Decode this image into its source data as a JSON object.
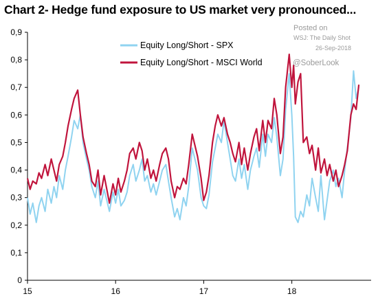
{
  "chart_data": {
    "type": "line",
    "title": "Chart 2- Hedge fund exposure to US market very pronounced...",
    "xlabel": "",
    "ylabel": "",
    "ylim": [
      0,
      0.9
    ],
    "yticks": [
      "0",
      "0,1",
      "0,2",
      "0,3",
      "0,4",
      "0,5",
      "0,6",
      "0,7",
      "0,8",
      "0,9"
    ],
    "xlim": [
      2015,
      2018.9
    ],
    "xticks": [
      {
        "value": 2015,
        "label": "15"
      },
      {
        "value": 2016,
        "label": "16"
      },
      {
        "value": 2017,
        "label": "17"
      },
      {
        "value": 2018,
        "label": "18"
      }
    ],
    "grid": false,
    "legend": "top-center",
    "series": [
      {
        "name": "Equity Long/Short - SPX",
        "color": "#8fd3f0",
        "points": [
          [
            2015.0,
            0.3
          ],
          [
            2015.03,
            0.24
          ],
          [
            2015.06,
            0.28
          ],
          [
            2015.1,
            0.21
          ],
          [
            2015.13,
            0.27
          ],
          [
            2015.16,
            0.3
          ],
          [
            2015.2,
            0.25
          ],
          [
            2015.23,
            0.33
          ],
          [
            2015.27,
            0.28
          ],
          [
            2015.3,
            0.34
          ],
          [
            2015.33,
            0.3
          ],
          [
            2015.36,
            0.38
          ],
          [
            2015.4,
            0.33
          ],
          [
            2015.43,
            0.4
          ],
          [
            2015.46,
            0.45
          ],
          [
            2015.5,
            0.52
          ],
          [
            2015.53,
            0.58
          ],
          [
            2015.57,
            0.55
          ],
          [
            2015.6,
            0.6
          ],
          [
            2015.63,
            0.5
          ],
          [
            2015.67,
            0.44
          ],
          [
            2015.7,
            0.4
          ],
          [
            2015.73,
            0.34
          ],
          [
            2015.77,
            0.3
          ],
          [
            2015.8,
            0.36
          ],
          [
            2015.83,
            0.27
          ],
          [
            2015.87,
            0.33
          ],
          [
            2015.9,
            0.29
          ],
          [
            2015.93,
            0.25
          ],
          [
            2015.97,
            0.32
          ],
          [
            2016.0,
            0.28
          ],
          [
            2016.03,
            0.33
          ],
          [
            2016.06,
            0.27
          ],
          [
            2016.1,
            0.29
          ],
          [
            2016.13,
            0.32
          ],
          [
            2016.16,
            0.38
          ],
          [
            2016.2,
            0.42
          ],
          [
            2016.23,
            0.36
          ],
          [
            2016.27,
            0.4
          ],
          [
            2016.3,
            0.44
          ],
          [
            2016.33,
            0.36
          ],
          [
            2016.36,
            0.38
          ],
          [
            2016.4,
            0.32
          ],
          [
            2016.43,
            0.35
          ],
          [
            2016.46,
            0.31
          ],
          [
            2016.5,
            0.36
          ],
          [
            2016.53,
            0.4
          ],
          [
            2016.57,
            0.42
          ],
          [
            2016.6,
            0.36
          ],
          [
            2016.63,
            0.3
          ],
          [
            2016.67,
            0.23
          ],
          [
            2016.7,
            0.26
          ],
          [
            2016.73,
            0.22
          ],
          [
            2016.77,
            0.3
          ],
          [
            2016.8,
            0.27
          ],
          [
            2016.83,
            0.34
          ],
          [
            2016.87,
            0.48
          ],
          [
            2016.9,
            0.44
          ],
          [
            2016.93,
            0.4
          ],
          [
            2016.97,
            0.3
          ],
          [
            2017.0,
            0.27
          ],
          [
            2017.03,
            0.26
          ],
          [
            2017.06,
            0.31
          ],
          [
            2017.1,
            0.43
          ],
          [
            2017.13,
            0.48
          ],
          [
            2017.16,
            0.53
          ],
          [
            2017.2,
            0.5
          ],
          [
            2017.23,
            0.58
          ],
          [
            2017.27,
            0.5
          ],
          [
            2017.3,
            0.44
          ],
          [
            2017.33,
            0.38
          ],
          [
            2017.36,
            0.36
          ],
          [
            2017.4,
            0.44
          ],
          [
            2017.43,
            0.37
          ],
          [
            2017.46,
            0.42
          ],
          [
            2017.5,
            0.33
          ],
          [
            2017.53,
            0.4
          ],
          [
            2017.57,
            0.45
          ],
          [
            2017.6,
            0.48
          ],
          [
            2017.63,
            0.41
          ],
          [
            2017.67,
            0.53
          ],
          [
            2017.7,
            0.45
          ],
          [
            2017.73,
            0.53
          ],
          [
            2017.77,
            0.5
          ],
          [
            2017.8,
            0.59
          ],
          [
            2017.83,
            0.52
          ],
          [
            2017.87,
            0.38
          ],
          [
            2017.9,
            0.44
          ],
          [
            2017.93,
            0.62
          ],
          [
            2017.97,
            0.75
          ],
          [
            2018.0,
            0.6
          ],
          [
            2018.02,
            0.45
          ],
          [
            2018.04,
            0.23
          ],
          [
            2018.07,
            0.21
          ],
          [
            2018.1,
            0.25
          ],
          [
            2018.13,
            0.23
          ],
          [
            2018.17,
            0.31
          ],
          [
            2018.2,
            0.27
          ],
          [
            2018.23,
            0.37
          ],
          [
            2018.27,
            0.3
          ],
          [
            2018.3,
            0.25
          ],
          [
            2018.33,
            0.38
          ],
          [
            2018.37,
            0.22
          ],
          [
            2018.4,
            0.29
          ],
          [
            2018.43,
            0.36
          ],
          [
            2018.47,
            0.4
          ],
          [
            2018.5,
            0.34
          ],
          [
            2018.53,
            0.37
          ],
          [
            2018.57,
            0.3
          ],
          [
            2018.6,
            0.4
          ],
          [
            2018.63,
            0.48
          ],
          [
            2018.67,
            0.59
          ],
          [
            2018.7,
            0.76
          ],
          [
            2018.73,
            0.66
          ],
          [
            2018.76,
            0.7
          ]
        ]
      },
      {
        "name": "Equity Long/Short - MSCI World",
        "color": "#c0143c",
        "points": [
          [
            2015.0,
            0.37
          ],
          [
            2015.03,
            0.33
          ],
          [
            2015.06,
            0.36
          ],
          [
            2015.1,
            0.35
          ],
          [
            2015.13,
            0.39
          ],
          [
            2015.16,
            0.37
          ],
          [
            2015.2,
            0.42
          ],
          [
            2015.23,
            0.38
          ],
          [
            2015.27,
            0.44
          ],
          [
            2015.3,
            0.4
          ],
          [
            2015.33,
            0.36
          ],
          [
            2015.36,
            0.42
          ],
          [
            2015.4,
            0.45
          ],
          [
            2015.43,
            0.5
          ],
          [
            2015.46,
            0.56
          ],
          [
            2015.5,
            0.62
          ],
          [
            2015.53,
            0.66
          ],
          [
            2015.57,
            0.69
          ],
          [
            2015.6,
            0.6
          ],
          [
            2015.63,
            0.52
          ],
          [
            2015.67,
            0.46
          ],
          [
            2015.7,
            0.42
          ],
          [
            2015.73,
            0.36
          ],
          [
            2015.77,
            0.34
          ],
          [
            2015.8,
            0.4
          ],
          [
            2015.83,
            0.31
          ],
          [
            2015.87,
            0.38
          ],
          [
            2015.9,
            0.33
          ],
          [
            2015.93,
            0.28
          ],
          [
            2015.97,
            0.35
          ],
          [
            2016.0,
            0.31
          ],
          [
            2016.03,
            0.37
          ],
          [
            2016.06,
            0.32
          ],
          [
            2016.1,
            0.36
          ],
          [
            2016.13,
            0.4
          ],
          [
            2016.16,
            0.46
          ],
          [
            2016.2,
            0.48
          ],
          [
            2016.23,
            0.44
          ],
          [
            2016.27,
            0.5
          ],
          [
            2016.3,
            0.47
          ],
          [
            2016.33,
            0.4
          ],
          [
            2016.36,
            0.44
          ],
          [
            2016.4,
            0.37
          ],
          [
            2016.43,
            0.4
          ],
          [
            2016.46,
            0.36
          ],
          [
            2016.5,
            0.42
          ],
          [
            2016.53,
            0.46
          ],
          [
            2016.57,
            0.48
          ],
          [
            2016.6,
            0.44
          ],
          [
            2016.63,
            0.36
          ],
          [
            2016.67,
            0.3
          ],
          [
            2016.7,
            0.34
          ],
          [
            2016.73,
            0.33
          ],
          [
            2016.77,
            0.37
          ],
          [
            2016.8,
            0.35
          ],
          [
            2016.83,
            0.42
          ],
          [
            2016.87,
            0.53
          ],
          [
            2016.9,
            0.49
          ],
          [
            2016.93,
            0.45
          ],
          [
            2016.97,
            0.37
          ],
          [
            2017.0,
            0.29
          ],
          [
            2017.03,
            0.32
          ],
          [
            2017.06,
            0.38
          ],
          [
            2017.1,
            0.5
          ],
          [
            2017.13,
            0.56
          ],
          [
            2017.16,
            0.6
          ],
          [
            2017.2,
            0.56
          ],
          [
            2017.23,
            0.59
          ],
          [
            2017.27,
            0.53
          ],
          [
            2017.3,
            0.5
          ],
          [
            2017.33,
            0.46
          ],
          [
            2017.36,
            0.43
          ],
          [
            2017.4,
            0.5
          ],
          [
            2017.43,
            0.42
          ],
          [
            2017.46,
            0.48
          ],
          [
            2017.5,
            0.4
          ],
          [
            2017.53,
            0.46
          ],
          [
            2017.57,
            0.52
          ],
          [
            2017.6,
            0.55
          ],
          [
            2017.63,
            0.47
          ],
          [
            2017.67,
            0.58
          ],
          [
            2017.7,
            0.5
          ],
          [
            2017.73,
            0.58
          ],
          [
            2017.77,
            0.55
          ],
          [
            2017.8,
            0.66
          ],
          [
            2017.83,
            0.6
          ],
          [
            2017.87,
            0.46
          ],
          [
            2017.9,
            0.52
          ],
          [
            2017.93,
            0.7
          ],
          [
            2017.97,
            0.82
          ],
          [
            2018.0,
            0.7
          ],
          [
            2018.02,
            0.78
          ],
          [
            2018.04,
            0.64
          ],
          [
            2018.07,
            0.72
          ],
          [
            2018.1,
            0.75
          ],
          [
            2018.13,
            0.5
          ],
          [
            2018.17,
            0.52
          ],
          [
            2018.2,
            0.46
          ],
          [
            2018.23,
            0.49
          ],
          [
            2018.27,
            0.4
          ],
          [
            2018.3,
            0.48
          ],
          [
            2018.33,
            0.39
          ],
          [
            2018.37,
            0.44
          ],
          [
            2018.4,
            0.38
          ],
          [
            2018.43,
            0.42
          ],
          [
            2018.47,
            0.36
          ],
          [
            2018.5,
            0.4
          ],
          [
            2018.53,
            0.34
          ],
          [
            2018.57,
            0.38
          ],
          [
            2018.6,
            0.42
          ],
          [
            2018.63,
            0.47
          ],
          [
            2018.67,
            0.6
          ],
          [
            2018.7,
            0.64
          ],
          [
            2018.73,
            0.62
          ],
          [
            2018.76,
            0.71
          ]
        ]
      }
    ]
  },
  "source": {
    "line1": "Posted on",
    "line2": "WSJ: The Daily Shot",
    "line3": "26-Sep-2018"
  },
  "watermark": "@SoberLook"
}
